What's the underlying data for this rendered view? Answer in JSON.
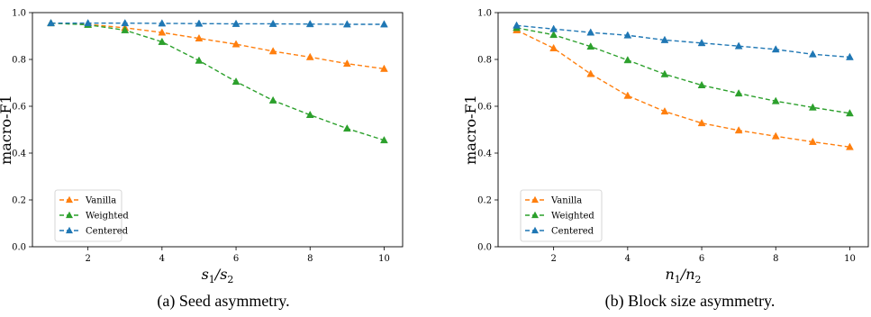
{
  "chart_data": [
    {
      "type": "line",
      "caption": "(a) Seed asymmetry.",
      "xlabel": "s1/s2",
      "xlabel_main": "s",
      "xlabel_sub1": "1",
      "xlabel_sep": "/s",
      "xlabel_sub2": "2",
      "ylabel": "macro-F1",
      "xlim": [
        0.5,
        10.5
      ],
      "ylim": [
        0,
        1.0
      ],
      "xticks": [
        2,
        4,
        6,
        8,
        10
      ],
      "yticks": [
        0.0,
        0.2,
        0.4,
        0.6,
        0.8,
        1.0
      ],
      "x": [
        1,
        2,
        3,
        4,
        5,
        6,
        7,
        8,
        9,
        10
      ],
      "legend_position": "lower-left",
      "series": [
        {
          "name": "Vanilla",
          "color": "#ff7f0e",
          "values": [
            0.955,
            0.95,
            0.935,
            0.915,
            0.89,
            0.865,
            0.835,
            0.81,
            0.782,
            0.76
          ]
        },
        {
          "name": "Weighted",
          "color": "#2ca02c",
          "values": [
            0.955,
            0.948,
            0.925,
            0.875,
            0.795,
            0.705,
            0.625,
            0.563,
            0.505,
            0.455
          ]
        },
        {
          "name": "Centered",
          "color": "#1f77b4",
          "values": [
            0.955,
            0.955,
            0.955,
            0.954,
            0.953,
            0.952,
            0.952,
            0.951,
            0.95,
            0.95
          ]
        }
      ]
    },
    {
      "type": "line",
      "caption": "(b) Block size asymmetry.",
      "xlabel": "n1/n2",
      "xlabel_main": "n",
      "xlabel_sub1": "1",
      "xlabel_sep": "/n",
      "xlabel_sub2": "2",
      "ylabel": "macro-F1",
      "xlim": [
        0.5,
        10.5
      ],
      "ylim": [
        0,
        1.0
      ],
      "xticks": [
        2,
        4,
        6,
        8,
        10
      ],
      "yticks": [
        0.0,
        0.2,
        0.4,
        0.6,
        0.8,
        1.0
      ],
      "x": [
        1,
        2,
        3,
        4,
        5,
        6,
        7,
        8,
        9,
        10
      ],
      "legend_position": "lower-left",
      "series": [
        {
          "name": "Vanilla",
          "color": "#ff7f0e",
          "values": [
            0.925,
            0.848,
            0.738,
            0.645,
            0.578,
            0.528,
            0.497,
            0.472,
            0.448,
            0.426
          ]
        },
        {
          "name": "Weighted",
          "color": "#2ca02c",
          "values": [
            0.935,
            0.905,
            0.855,
            0.797,
            0.737,
            0.69,
            0.655,
            0.622,
            0.595,
            0.57
          ]
        },
        {
          "name": "Centered",
          "color": "#1f77b4",
          "values": [
            0.945,
            0.93,
            0.915,
            0.903,
            0.883,
            0.87,
            0.857,
            0.843,
            0.822,
            0.81
          ]
        }
      ]
    }
  ]
}
